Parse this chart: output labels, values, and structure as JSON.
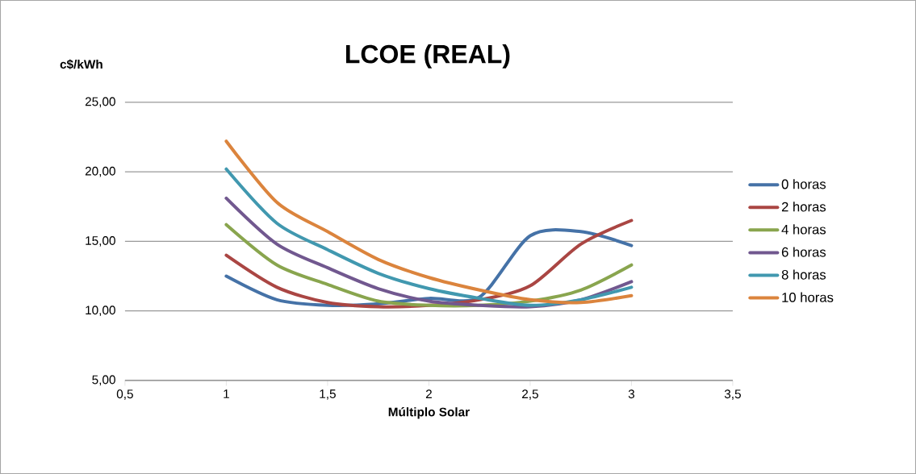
{
  "chart_data": {
    "type": "line",
    "title": "LCOE (REAL)",
    "xlabel": "Múltiplo Solar",
    "ylabel": "c$/kWh",
    "x": [
      1,
      1.25,
      1.5,
      1.75,
      2,
      2.25,
      2.5,
      2.75,
      3
    ],
    "series": [
      {
        "name": "0 horas",
        "color": "#4572a7",
        "values": [
          12.5,
          10.8,
          10.4,
          10.5,
          10.9,
          11.0,
          15.4,
          15.7,
          14.7
        ]
      },
      {
        "name": "2 horas",
        "color": "#aa4643",
        "values": [
          14.0,
          11.7,
          10.6,
          10.3,
          10.4,
          10.8,
          11.8,
          14.8,
          16.5
        ]
      },
      {
        "name": "4 horas",
        "color": "#89a54e",
        "values": [
          16.2,
          13.3,
          11.9,
          10.7,
          10.4,
          10.4,
          10.7,
          11.5,
          13.3
        ]
      },
      {
        "name": "6 horas",
        "color": "#71588f",
        "values": [
          18.1,
          14.8,
          13.1,
          11.6,
          10.7,
          10.4,
          10.3,
          10.8,
          12.1
        ]
      },
      {
        "name": "8 horas",
        "color": "#4198af",
        "values": [
          20.2,
          16.3,
          14.4,
          12.7,
          11.6,
          10.9,
          10.4,
          10.8,
          11.7
        ]
      },
      {
        "name": "10 horas",
        "color": "#db843d",
        "values": [
          22.2,
          17.8,
          15.7,
          13.7,
          12.4,
          11.5,
          10.8,
          10.6,
          11.1
        ]
      }
    ],
    "xlim": [
      0.5,
      3.5
    ],
    "ylim": [
      5,
      25
    ],
    "xticks": [
      {
        "value": 0.5,
        "label": "0,5"
      },
      1,
      {
        "value": 1.5,
        "label": "1,5"
      },
      2,
      {
        "value": 2.5,
        "label": "2,5"
      },
      3,
      {
        "value": 3.5,
        "label": "3,5"
      }
    ],
    "yticks": [
      {
        "value": 5,
        "label": "5,00"
      },
      {
        "value": 10,
        "label": "10,00"
      },
      {
        "value": 15,
        "label": "15,00"
      },
      {
        "value": 20,
        "label": "20,00"
      },
      {
        "value": 25,
        "label": "25,00"
      }
    ],
    "grid": "y",
    "legend": "right",
    "marker": "none",
    "line_style": "solid"
  }
}
